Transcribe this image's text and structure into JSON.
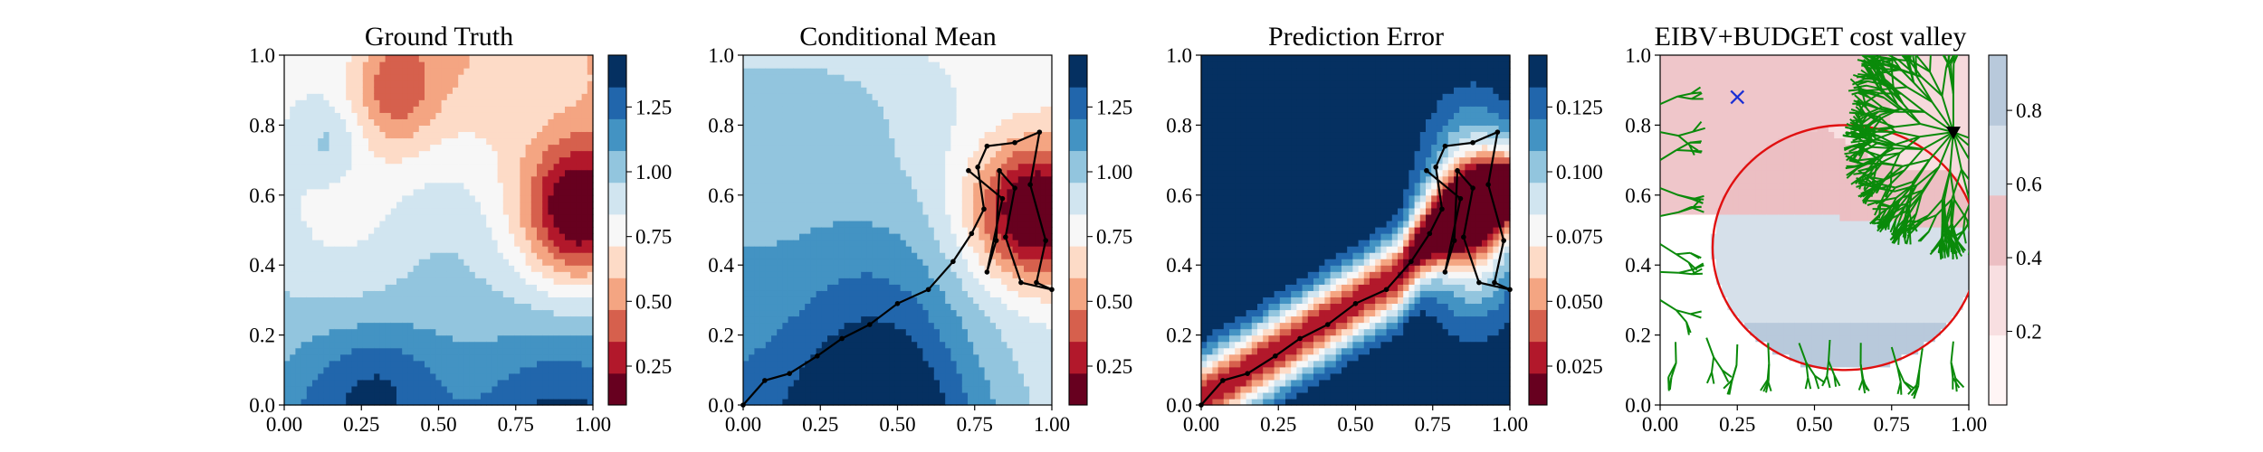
{
  "colors": {
    "diverging_palette": [
      "#67001f",
      "#b2182b",
      "#d6604d",
      "#f4a582",
      "#fddbc7",
      "#f7f7f7",
      "#d1e5f0",
      "#92c5de",
      "#4393c3",
      "#2166ac",
      "#053061"
    ],
    "valley_palette": [
      "#fff5f5",
      "#f8dfe1",
      "#ecbfc3",
      "#d6e0ea",
      "#b8c9db"
    ],
    "path": "#000000",
    "tree": "#0a8a0a",
    "boundary": "#e01010",
    "start_marker": "#1a2fd4",
    "end_marker": "#000000"
  },
  "chart_data": [
    {
      "type": "heatmap",
      "title": "Ground Truth",
      "xlim": [
        0,
        1
      ],
      "ylim": [
        0,
        1
      ],
      "xticks": [
        "0.00",
        "0.25",
        "0.50",
        "0.75",
        "1.00"
      ],
      "yticks": [
        "0.0",
        "0.2",
        "0.4",
        "0.6",
        "0.8",
        "1.0"
      ],
      "colorbar": {
        "range": [
          0.1,
          1.45
        ],
        "levels": 11,
        "ticks": [
          "0.25",
          "0.50",
          "0.75",
          "1.00",
          "1.25"
        ]
      },
      "field": "ground_truth"
    },
    {
      "type": "heatmap",
      "title": "Conditional Mean",
      "xlim": [
        0,
        1
      ],
      "ylim": [
        0,
        1
      ],
      "xticks": [
        "0.00",
        "0.25",
        "0.50",
        "0.75",
        "1.00"
      ],
      "yticks": [
        "0.0",
        "0.2",
        "0.4",
        "0.6",
        "0.8",
        "1.0"
      ],
      "colorbar": {
        "range": [
          0.1,
          1.45
        ],
        "levels": 11,
        "ticks": [
          "0.25",
          "0.50",
          "0.75",
          "1.00",
          "1.25"
        ]
      },
      "field": "conditional_mean",
      "path": [
        [
          0,
          0
        ],
        [
          0.07,
          0.07
        ],
        [
          0.15,
          0.09
        ],
        [
          0.24,
          0.14
        ],
        [
          0.32,
          0.19
        ],
        [
          0.41,
          0.23
        ],
        [
          0.5,
          0.29
        ],
        [
          0.6,
          0.33
        ],
        [
          0.68,
          0.41
        ],
        [
          0.74,
          0.49
        ],
        [
          0.78,
          0.56
        ],
        [
          0.76,
          0.68
        ],
        [
          0.79,
          0.74
        ],
        [
          0.88,
          0.75
        ],
        [
          0.96,
          0.78
        ],
        [
          0.93,
          0.63
        ],
        [
          0.98,
          0.47
        ],
        [
          0.95,
          0.35
        ],
        [
          1.0,
          0.33
        ],
        [
          0.9,
          0.35
        ],
        [
          0.85,
          0.48
        ],
        [
          0.88,
          0.62
        ],
        [
          0.83,
          0.67
        ],
        [
          0.82,
          0.47
        ],
        [
          0.79,
          0.38
        ],
        [
          0.84,
          0.59
        ],
        [
          0.73,
          0.67
        ]
      ]
    },
    {
      "type": "heatmap",
      "title": "Prediction Error",
      "xlim": [
        0,
        1
      ],
      "ylim": [
        0,
        1
      ],
      "xticks": [
        "0.00",
        "0.25",
        "0.50",
        "0.75",
        "1.00"
      ],
      "yticks": [
        "0.0",
        "0.2",
        "0.4",
        "0.6",
        "0.8",
        "1.0"
      ],
      "colorbar": {
        "range": [
          0.01,
          0.145
        ],
        "levels": 11,
        "ticks": [
          "0.025",
          "0.050",
          "0.075",
          "0.100",
          "0.125"
        ]
      },
      "field": "prediction_error",
      "path": [
        [
          0,
          0
        ],
        [
          0.07,
          0.07
        ],
        [
          0.15,
          0.09
        ],
        [
          0.24,
          0.14
        ],
        [
          0.32,
          0.19
        ],
        [
          0.41,
          0.23
        ],
        [
          0.5,
          0.29
        ],
        [
          0.6,
          0.33
        ],
        [
          0.68,
          0.41
        ],
        [
          0.74,
          0.49
        ],
        [
          0.78,
          0.56
        ],
        [
          0.76,
          0.68
        ],
        [
          0.79,
          0.74
        ],
        [
          0.88,
          0.75
        ],
        [
          0.96,
          0.78
        ],
        [
          0.93,
          0.63
        ],
        [
          0.98,
          0.47
        ],
        [
          0.95,
          0.35
        ],
        [
          1.0,
          0.33
        ],
        [
          0.9,
          0.35
        ],
        [
          0.85,
          0.48
        ],
        [
          0.88,
          0.62
        ],
        [
          0.83,
          0.67
        ],
        [
          0.82,
          0.47
        ],
        [
          0.79,
          0.38
        ],
        [
          0.84,
          0.59
        ],
        [
          0.73,
          0.67
        ]
      ]
    },
    {
      "type": "heatmap",
      "title": "EIBV+BUDGET cost valley",
      "xlim": [
        0,
        1
      ],
      "ylim": [
        0,
        1
      ],
      "xticks": [
        "0.00",
        "0.25",
        "0.50",
        "0.75",
        "1.00"
      ],
      "yticks": [
        "0.0",
        "0.2",
        "0.4",
        "0.6",
        "0.8",
        "1.0"
      ],
      "colorbar": {
        "range": [
          0.0,
          0.95
        ],
        "levels": 5,
        "ticks": [
          "0.2",
          "0.4",
          "0.6",
          "0.8"
        ]
      },
      "field": "cost_valley",
      "start_point": [
        0.25,
        0.88
      ],
      "end_point": [
        0.95,
        0.78
      ],
      "budget_ellipse": {
        "center": [
          0.6,
          0.45
        ],
        "rx": 0.43,
        "ry": 0.35
      }
    }
  ]
}
